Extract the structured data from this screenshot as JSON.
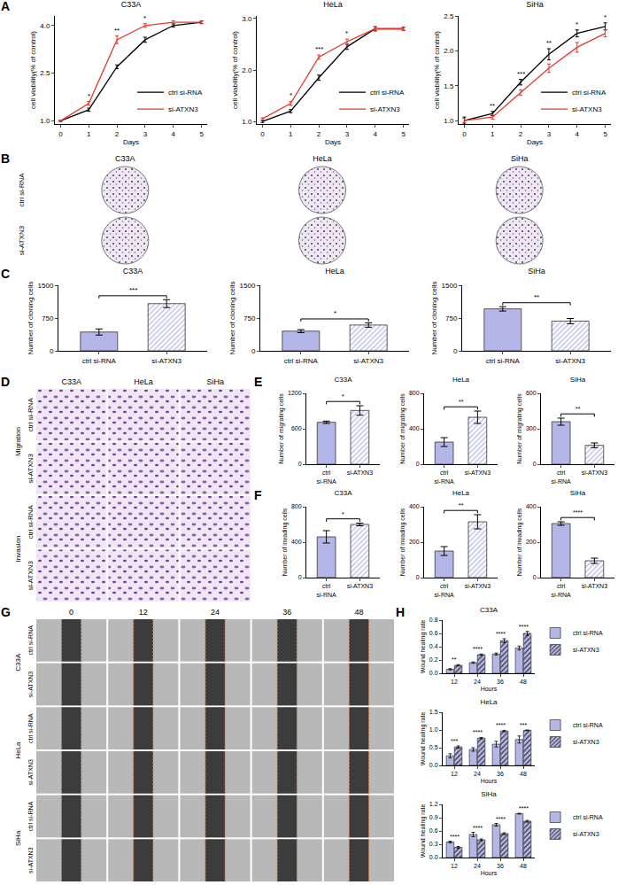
{
  "chart_data": [
    {
      "panel": "A",
      "type": "line",
      "title": "C33A",
      "xlabel": "Days",
      "ylabel": "cell viability(% of control)",
      "x": [
        0,
        1,
        2,
        3,
        4,
        5
      ],
      "xlim": [
        -0.2,
        5.2
      ],
      "xticks": [
        0,
        1,
        2,
        3,
        4,
        5
      ],
      "ylim": [
        0.9,
        4.3
      ],
      "yticks": [
        {
          "value": 1,
          "label": "1.0"
        },
        2.5,
        {
          "value": 4,
          "label": "4.0"
        }
      ],
      "legend": "lower right",
      "series": [
        {
          "name": "ctrl si-RNA",
          "color": "#000000",
          "values": [
            1.0,
            1.35,
            2.7,
            3.55,
            4.0,
            4.1
          ],
          "errors": [
            0.02,
            0.05,
            0.06,
            0.08,
            0.05,
            0.04
          ]
        },
        {
          "name": "si-ATXN3",
          "color": "#e8392b",
          "values": [
            1.0,
            1.55,
            3.55,
            4.0,
            4.1,
            4.1
          ],
          "errors": [
            0.02,
            0.06,
            0.12,
            0.06,
            0.05,
            0.04
          ]
        }
      ],
      "annotations": [
        null,
        "*",
        "**",
        "*",
        null,
        null
      ]
    },
    {
      "panel": "A",
      "type": "line",
      "title": "HeLa",
      "xlabel": "Days",
      "ylabel": "cell viability(% of control)",
      "x": [
        0,
        1,
        2,
        3,
        4,
        5
      ],
      "xlim": [
        -0.2,
        5.2
      ],
      "xticks": [
        0,
        1,
        2,
        3,
        4,
        5
      ],
      "ylim": [
        0.95,
        3.05
      ],
      "yticks": [
        {
          "value": 1,
          "label": "1.0"
        },
        {
          "value": 2,
          "label": "2.0"
        },
        {
          "value": 3,
          "label": "3.0"
        }
      ],
      "legend": "lower right",
      "series": [
        {
          "name": "ctrl si-RNA",
          "color": "#000000",
          "values": [
            1.0,
            1.2,
            1.85,
            2.45,
            2.8,
            2.8
          ],
          "errors": [
            0.02,
            0.03,
            0.05,
            0.05,
            0.04,
            0.03
          ]
        },
        {
          "name": "si-ATXN3",
          "color": "#e8392b",
          "values": [
            1.05,
            1.35,
            2.25,
            2.55,
            2.8,
            2.8
          ],
          "errors": [
            0.02,
            0.04,
            0.04,
            0.05,
            0.04,
            0.03
          ]
        }
      ],
      "annotations": [
        null,
        "*",
        "***",
        "*",
        null,
        null
      ]
    },
    {
      "panel": "A",
      "type": "line",
      "title": "SiHa",
      "xlabel": "Days",
      "ylabel": "cell viability(% of control)",
      "x": [
        0,
        1,
        2,
        3,
        4,
        5
      ],
      "xlim": [
        -0.2,
        5.2
      ],
      "xticks": [
        0,
        1,
        2,
        3,
        4,
        5
      ],
      "ylim": [
        0.95,
        2.5
      ],
      "yticks": [
        {
          "value": 1,
          "label": "1.0"
        },
        1.5,
        {
          "value": 2,
          "label": "2.0"
        },
        2.5
      ],
      "legend": "lower right",
      "series": [
        {
          "name": "ctrl si-RNA",
          "color": "#000000",
          "values": [
            1.0,
            1.1,
            1.55,
            1.95,
            2.25,
            2.35
          ],
          "errors": [
            0.05,
            0.03,
            0.04,
            0.08,
            0.05,
            0.05
          ]
        },
        {
          "name": "si-ATXN3",
          "color": "#e8392b",
          "values": [
            1.0,
            1.05,
            1.4,
            1.75,
            2.05,
            2.25
          ],
          "errors": [
            0.03,
            0.03,
            0.04,
            0.06,
            0.07,
            0.05
          ]
        }
      ],
      "annotations": [
        null,
        "**",
        "***",
        "**",
        "*",
        "*"
      ]
    },
    {
      "panel": "C",
      "type": "bar",
      "title": "C33A",
      "ylabel": "Number of cloning cells",
      "categories": [
        "ctrl si-RNA",
        "si-ATXN3"
      ],
      "values": [
        430,
        1080
      ],
      "errors": [
        70,
        90
      ],
      "colors": [
        "#b4b6e8",
        "#b4b6e8"
      ],
      "ylim": [
        0,
        1500
      ],
      "yticks": [
        0,
        750,
        1500
      ],
      "annotations": [
        "***"
      ]
    },
    {
      "panel": "C",
      "type": "bar",
      "title": "HeLa",
      "ylabel": "Number of cloning cells",
      "categories": [
        "ctrl si-RNA",
        "si-ATXN3"
      ],
      "values": [
        450,
        590
      ],
      "errors": [
        35,
        50
      ],
      "colors": [
        "#b4b6e8",
        "#b4b6e8"
      ],
      "ylim": [
        0,
        1500
      ],
      "yticks": [
        0,
        750,
        1500
      ],
      "annotations": [
        "*"
      ]
    },
    {
      "panel": "C",
      "type": "bar",
      "title": "SiHa",
      "ylabel": "Number of cloning cells",
      "categories": [
        "ctrl si-RNA",
        "si-ATXN3"
      ],
      "values": [
        960,
        680
      ],
      "errors": [
        50,
        60
      ],
      "colors": [
        "#b4b6e8",
        "#b4b6e8"
      ],
      "ylim": [
        0,
        1500
      ],
      "yticks": [
        0,
        750,
        1500
      ],
      "annotations": [
        "**"
      ]
    },
    {
      "panel": "E",
      "type": "bar",
      "title": "C33A",
      "ylabel": "Number of migrating cells",
      "categories": [
        "ctrl si-RNA",
        "si-ATXN3"
      ],
      "values": [
        710,
        910
      ],
      "errors": [
        20,
        80
      ],
      "colors": [
        "#b4b6e8",
        "#b4b6e8"
      ],
      "ylim": [
        0,
        1200
      ],
      "yticks": [
        0,
        600,
        1200
      ],
      "annotations": [
        "*"
      ]
    },
    {
      "panel": "E",
      "type": "bar",
      "title": "HeLa",
      "ylabel": "Number of migrating cells",
      "categories": [
        "ctrl si-RNA",
        "si-ATXN3"
      ],
      "values": [
        250,
        530
      ],
      "errors": [
        50,
        70
      ],
      "colors": [
        "#b4b6e8",
        "#b4b6e8"
      ],
      "ylim": [
        0,
        800
      ],
      "yticks": [
        0,
        400,
        800
      ],
      "annotations": [
        "**"
      ]
    },
    {
      "panel": "E",
      "type": "bar",
      "title": "SiHa",
      "ylabel": "Number of migrating cells",
      "categories": [
        "ctrl si-RNA",
        "si-ATXN3"
      ],
      "values": [
        360,
        160
      ],
      "errors": [
        30,
        20
      ],
      "colors": [
        "#b4b6e8",
        "#b4b6e8"
      ],
      "ylim": [
        0,
        600
      ],
      "yticks": [
        0,
        300,
        600
      ],
      "annotations": [
        "**"
      ]
    },
    {
      "panel": "F",
      "type": "bar",
      "title": "C33A",
      "ylabel": "Number of invading cells",
      "categories": [
        "ctrl si-RNA",
        "si-ATXN3"
      ],
      "values": [
        460,
        600
      ],
      "errors": [
        70,
        15
      ],
      "colors": [
        "#b4b6e8",
        "#b4b6e8"
      ],
      "ylim": [
        0,
        800
      ],
      "yticks": [
        0,
        400,
        800
      ],
      "annotations": [
        "*"
      ]
    },
    {
      "panel": "F",
      "type": "bar",
      "title": "HeLa",
      "ylabel": "Number of invading cells",
      "categories": [
        "ctrl si-RNA",
        "si-ATXN3"
      ],
      "values": [
        150,
        315
      ],
      "errors": [
        25,
        40
      ],
      "colors": [
        "#b4b6e8",
        "#b4b6e8"
      ],
      "ylim": [
        0,
        400
      ],
      "yticks": [
        0,
        200,
        400
      ],
      "annotations": [
        "**"
      ]
    },
    {
      "panel": "F",
      "type": "bar",
      "title": "SiHa",
      "ylabel": "Number of invading cells",
      "categories": [
        "ctrl si-RNA",
        "si-ATXN3"
      ],
      "values": [
        305,
        95
      ],
      "errors": [
        10,
        15
      ],
      "colors": [
        "#b4b6e8",
        "#b4b6e8"
      ],
      "ylim": [
        0,
        400
      ],
      "yticks": [
        0,
        200,
        400
      ],
      "annotations": [
        "****"
      ]
    },
    {
      "panel": "H",
      "type": "bar",
      "title": "C33A",
      "xlabel": "Hours",
      "ylabel": "Wound healing rate",
      "categories": [
        "12",
        "24",
        "36",
        "48"
      ],
      "ylim": [
        0,
        0.8
      ],
      "yticks": [
        {
          "value": 0,
          "label": "0.0"
        },
        0.2,
        0.4,
        0.6,
        0.8
      ],
      "legend": "right",
      "series": [
        {
          "name": "ctrl si-RNA",
          "color": "#b4b6e8",
          "marker": "solid",
          "values": [
            0.06,
            0.16,
            0.29,
            0.38
          ],
          "errors": [
            0.01,
            0.01,
            0.015,
            0.03
          ]
        },
        {
          "name": "si-ATXN3",
          "color": "#b4b6e8",
          "marker": "hatch",
          "values": [
            0.12,
            0.28,
            0.49,
            0.6
          ],
          "errors": [
            0.01,
            0.01,
            0.03,
            0.03
          ]
        }
      ],
      "annotations": [
        "**",
        "****",
        "****",
        "****"
      ]
    },
    {
      "panel": "H",
      "type": "bar",
      "title": "HeLa",
      "xlabel": "Hours",
      "ylabel": "Wound healing rate",
      "categories": [
        "12",
        "24",
        "36",
        "48"
      ],
      "ylim": [
        0,
        1.5
      ],
      "yticks": [
        {
          "value": 0,
          "label": "0.0"
        },
        0.5,
        {
          "value": 1,
          "label": "1.0"
        },
        1.5
      ],
      "legend": "right",
      "series": [
        {
          "name": "ctrl si-RNA",
          "color": "#b4b6e8",
          "marker": "solid",
          "values": [
            0.27,
            0.45,
            0.6,
            0.73
          ],
          "errors": [
            0.06,
            0.05,
            0.08,
            0.1
          ]
        },
        {
          "name": "si-ATXN3",
          "color": "#b4b6e8",
          "marker": "hatch",
          "values": [
            0.52,
            0.77,
            0.97,
            0.99
          ],
          "errors": [
            0.03,
            0.02,
            0.02,
            0.01
          ]
        }
      ],
      "annotations": [
        "***",
        "****",
        "****",
        "***"
      ]
    },
    {
      "panel": "H",
      "type": "bar",
      "title": "SiHa",
      "xlabel": "Hours",
      "ylabel": "Wound healing rate",
      "categories": [
        "12",
        "24",
        "36",
        "48"
      ],
      "ylim": [
        0,
        1.2
      ],
      "yticks": [
        {
          "value": 0,
          "label": "0.0"
        },
        0.3,
        0.6,
        0.9,
        1.2
      ],
      "legend": "right",
      "series": [
        {
          "name": "ctrl si-RNA",
          "color": "#b4b6e8",
          "marker": "solid",
          "values": [
            0.35,
            0.52,
            0.74,
            0.99
          ],
          "errors": [
            0.02,
            0.05,
            0.03,
            0.01
          ]
        },
        {
          "name": "si-ATXN3",
          "color": "#b4b6e8",
          "marker": "hatch",
          "values": [
            0.23,
            0.4,
            0.54,
            0.82
          ],
          "errors": [
            0.02,
            0.02,
            0.02,
            0.02
          ]
        }
      ],
      "annotations": [
        "****",
        "****",
        "****",
        "****"
      ]
    }
  ],
  "image_panels": [
    {
      "panel": "B",
      "columns": [
        "C33A",
        "HeLa",
        "SiHa"
      ],
      "rows": [
        "ctrl si-RNA",
        "si-ATXN3"
      ]
    },
    {
      "panel": "D",
      "columns": [
        "C33A",
        "HeLa",
        "SiHa"
      ],
      "groups": [
        {
          "name": "Migration",
          "rows": [
            "ctrl si-RNA",
            "si-ATXN3"
          ]
        },
        {
          "name": "Invasion",
          "rows": [
            "ctrl si-RNA",
            "si-ATXN3"
          ]
        }
      ]
    },
    {
      "panel": "G",
      "columns": [
        "0",
        "12",
        "24",
        "36",
        "48"
      ],
      "groups": [
        {
          "name": "C33A",
          "rows": [
            "ctrl si-RNA",
            "si-ATXN3"
          ]
        },
        {
          "name": "HeLa",
          "rows": [
            "ctrl si-RNA",
            "si-ATXN3"
          ]
        },
        {
          "name": "SiHa",
          "rows": [
            "ctrl si-RNA",
            "si-ATXN3"
          ]
        }
      ]
    }
  ]
}
